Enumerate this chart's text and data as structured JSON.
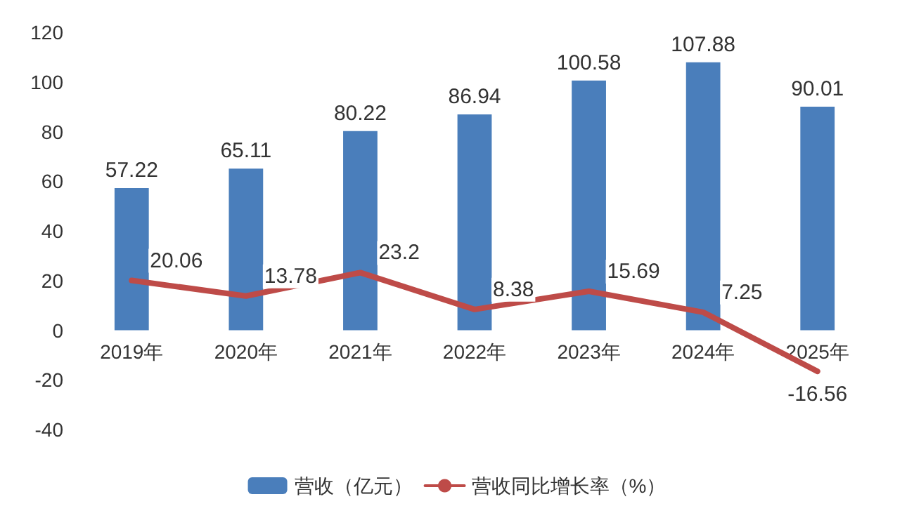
{
  "chart_data": {
    "type": "bar",
    "categories": [
      "2019年",
      "2020年",
      "2021年",
      "2022年",
      "2023年",
      "2024年",
      "2025年"
    ],
    "series": [
      {
        "name": "营收（亿元）",
        "color": "#4a7ebb",
        "values": [
          57.22,
          65.11,
          80.22,
          86.94,
          100.58,
          107.88,
          90.01
        ]
      },
      {
        "name": "营收同比增长率（%）",
        "type": "line",
        "color": "#be4b48",
        "values": [
          20.06,
          13.78,
          23.2,
          8.38,
          15.69,
          7.25,
          -16.56
        ]
      }
    ],
    "ylim": [
      -40,
      120
    ],
    "yticks": [
      -40,
      -20,
      0,
      20,
      40,
      60,
      80,
      100,
      120
    ],
    "grid": false,
    "legend": "bottom",
    "data_labels": true,
    "marker": "none",
    "line_style": "solid"
  }
}
